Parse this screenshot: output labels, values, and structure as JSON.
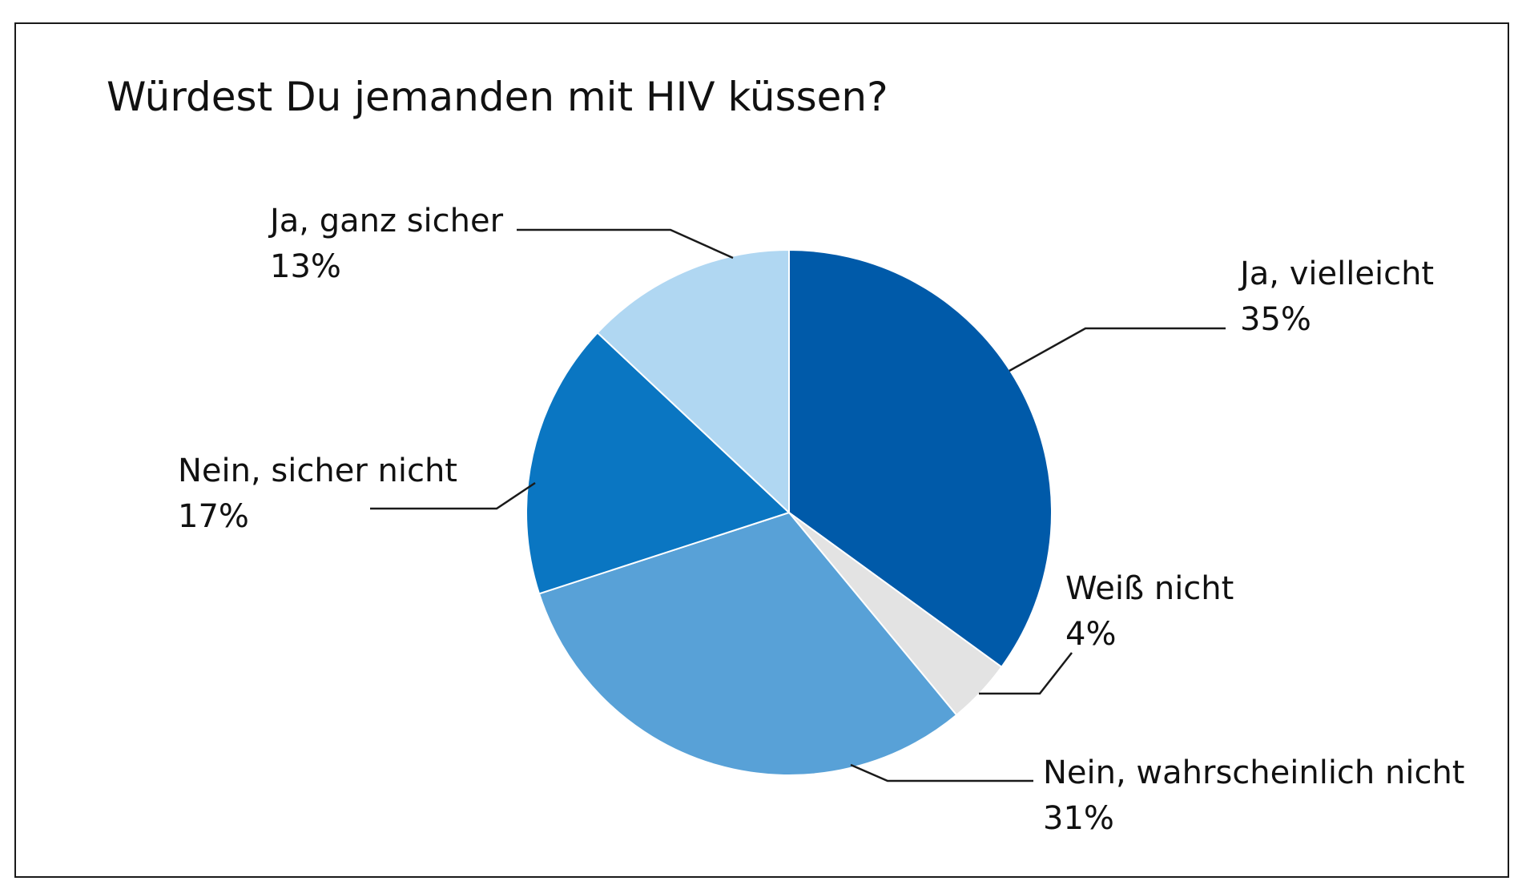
{
  "chart_data": {
    "type": "pie",
    "title": "Würdest Du jemanden mit HIV küssen?",
    "slices": [
      {
        "label": "Ja, vielleicht",
        "value": 35,
        "value_label": "35%",
        "color": "#005aa9"
      },
      {
        "label": "Weiß nicht",
        "value": 4,
        "value_label": "4%",
        "color": "#e3e3e3"
      },
      {
        "label": "Nein, wahrscheinlich nicht",
        "value": 31,
        "value_label": "31%",
        "color": "#58a1d7"
      },
      {
        "label": "Nein, sicher nicht",
        "value": 17,
        "value_label": "17%",
        "color": "#0a76c2"
      },
      {
        "label": "Ja, ganz sicher",
        "value": 13,
        "value_label": "13%",
        "color": "#b0d7f2"
      }
    ],
    "start_angle": "12 o'clock",
    "direction": "clockwise"
  }
}
